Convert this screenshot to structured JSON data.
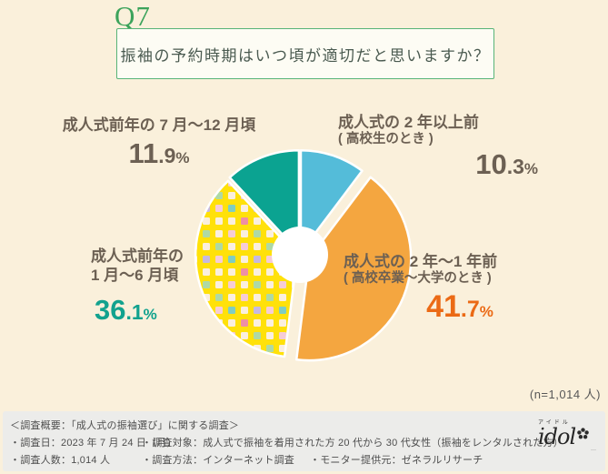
{
  "page": {
    "bg": "#FAF0DB",
    "footer_bg": "#ECECEA"
  },
  "header": {
    "qnum": "Q7",
    "question": "振袖の予約時期はいつ頃が適切だと思いますか？",
    "accent_green": "#3CA35B",
    "box_border_green": "#58B478"
  },
  "chart_data": {
    "type": "pie",
    "title": "振袖の予約時期はいつ頃が適切だと思いますか？",
    "n_label": "(n=1,014 人)",
    "donut": true,
    "start_angle": "12時の位置から時計回り",
    "pct_sign": "%",
    "slices": [
      {
        "label": "成人式の 2 年以上前",
        "sublabel": "( 高校生のとき )",
        "value": 10.3,
        "pct_int": "10",
        "pct_frac": ".3",
        "color": "#54BCD9",
        "pct_color": "#6C6053",
        "explode": 3
      },
      {
        "label": "成人式の 2 年〜1 年前",
        "sublabel": "( 高校卒業〜大学のとき )",
        "value": 41.7,
        "pct_int": "41",
        "pct_frac": ".7",
        "color": "#F4A640",
        "pct_color": "#EB6A15",
        "explode": 11
      },
      {
        "label": "成人式前年の\n1 月〜6 月頃",
        "value": 36.1,
        "pct_int": "36",
        "pct_frac": ".1",
        "color": "#FFE10A",
        "pct_color": "#12A28E",
        "explode": 3,
        "pattern": "multicolor-squares"
      },
      {
        "label": "成人式前年の 7 月〜12 月頃",
        "value": 11.9,
        "pct_int": "11",
        "pct_frac": ".9",
        "color": "#0BA391",
        "pct_color": "#6C6053",
        "explode": 3
      }
    ]
  },
  "footer": {
    "title": "＜調査概要：「成人式の振袖選び」に関する調査＞",
    "row1": [
      "・調査日：2023 年 7 月 24 日（月）",
      "・調査対象：成人式で振袖を着用された方 20 代から 30 代女性（振袖をレンタルされた方）"
    ],
    "row2": [
      "・調査人数：1,014 人",
      "・調査方法：インターネット調査",
      "・モニター提供元：ゼネラルリサーチ"
    ],
    "brand_kana": "アイドル",
    "brand_name": "idol",
    "brand_tagline": "···"
  }
}
